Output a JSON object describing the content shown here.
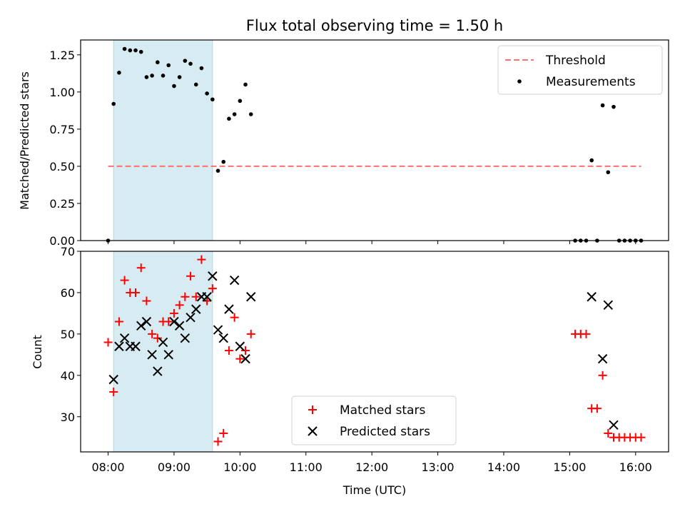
{
  "chart_data": [
    {
      "type": "scatter",
      "title": "Flux total observing time = 1.50 h",
      "xlabel": "",
      "ylabel": "Matched/Predicted stars",
      "ylim": [
        0,
        1.35
      ],
      "yticks": [
        "0.00",
        "0.25",
        "0.50",
        "0.75",
        "1.00",
        "1.25"
      ],
      "shaded_interval": [
        "08:05",
        "09:35"
      ],
      "threshold": {
        "name": "Threshold",
        "value": 0.5,
        "x_range": [
          "08:00",
          "16:05"
        ],
        "color": "#ff7070"
      },
      "legend": {
        "position": "top-right",
        "entries": [
          "Threshold",
          "Measurements"
        ]
      },
      "series": [
        {
          "name": "Measurements",
          "color": "#000000",
          "points": [
            [
              "08:00",
              0.0
            ],
            [
              "08:05",
              0.92
            ],
            [
              "08:10",
              1.13
            ],
            [
              "08:15",
              1.29
            ],
            [
              "08:20",
              1.28
            ],
            [
              "08:25",
              1.28
            ],
            [
              "08:30",
              1.27
            ],
            [
              "08:35",
              1.1
            ],
            [
              "08:40",
              1.11
            ],
            [
              "08:45",
              1.2
            ],
            [
              "08:50",
              1.11
            ],
            [
              "08:55",
              1.18
            ],
            [
              "09:00",
              1.04
            ],
            [
              "09:05",
              1.1
            ],
            [
              "09:10",
              1.21
            ],
            [
              "09:15",
              1.19
            ],
            [
              "09:20",
              1.05
            ],
            [
              "09:25",
              1.16
            ],
            [
              "09:30",
              0.99
            ],
            [
              "09:35",
              0.95
            ],
            [
              "09:40",
              0.47
            ],
            [
              "09:45",
              0.53
            ],
            [
              "09:50",
              0.82
            ],
            [
              "09:55",
              0.85
            ],
            [
              "10:00",
              0.94
            ],
            [
              "10:05",
              1.05
            ],
            [
              "10:10",
              0.85
            ],
            [
              "15:05",
              0.0
            ],
            [
              "15:10",
              0.0
            ],
            [
              "15:15",
              0.0
            ],
            [
              "15:20",
              0.54
            ],
            [
              "15:25",
              0.0
            ],
            [
              "15:30",
              0.91
            ],
            [
              "15:35",
              0.46
            ],
            [
              "15:40",
              0.9
            ],
            [
              "15:45",
              0.0
            ],
            [
              "15:50",
              0.0
            ],
            [
              "15:55",
              0.0
            ],
            [
              "16:00",
              0.0
            ],
            [
              "16:05",
              0.0
            ]
          ]
        }
      ]
    },
    {
      "type": "scatter",
      "title": "",
      "xlabel": "Time (UTC)",
      "ylabel": "Count",
      "ylim": [
        21.5,
        70
      ],
      "yticks": [
        "30",
        "40",
        "50",
        "60",
        "70"
      ],
      "xlim": [
        "07:35",
        "16:30"
      ],
      "xticks": [
        "08:00",
        "09:00",
        "10:00",
        "11:00",
        "12:00",
        "13:00",
        "14:00",
        "15:00",
        "16:00"
      ],
      "shaded_interval": [
        "08:05",
        "09:35"
      ],
      "legend": {
        "position": "bottom-center",
        "entries": [
          "Matched stars",
          "Predicted stars"
        ]
      },
      "series": [
        {
          "name": "Matched stars",
          "marker": "plus",
          "color": "#ff0000",
          "points": [
            [
              "08:00",
              48
            ],
            [
              "08:05",
              36
            ],
            [
              "08:10",
              53
            ],
            [
              "08:15",
              63
            ],
            [
              "08:20",
              60
            ],
            [
              "08:25",
              60
            ],
            [
              "08:30",
              66
            ],
            [
              "08:35",
              58
            ],
            [
              "08:40",
              50
            ],
            [
              "08:45",
              49
            ],
            [
              "08:50",
              53
            ],
            [
              "08:55",
              53
            ],
            [
              "09:00",
              55
            ],
            [
              "09:05",
              57
            ],
            [
              "09:10",
              59
            ],
            [
              "09:15",
              64
            ],
            [
              "09:20",
              59
            ],
            [
              "09:25",
              68
            ],
            [
              "09:30",
              58
            ],
            [
              "09:35",
              61
            ],
            [
              "09:40",
              24
            ],
            [
              "09:45",
              26
            ],
            [
              "09:50",
              46
            ],
            [
              "09:55",
              54
            ],
            [
              "10:00",
              44
            ],
            [
              "10:05",
              46
            ],
            [
              "10:10",
              50
            ],
            [
              "15:05",
              50
            ],
            [
              "15:10",
              50
            ],
            [
              "15:15",
              50
            ],
            [
              "15:20",
              32
            ],
            [
              "15:25",
              32
            ],
            [
              "15:30",
              40
            ],
            [
              "15:35",
              26
            ],
            [
              "15:40",
              25
            ],
            [
              "15:45",
              25
            ],
            [
              "15:50",
              25
            ],
            [
              "15:55",
              25
            ],
            [
              "16:00",
              25
            ],
            [
              "16:05",
              25
            ]
          ]
        },
        {
          "name": "Predicted stars",
          "marker": "x",
          "color": "#000000",
          "points": [
            [
              "08:05",
              39
            ],
            [
              "08:10",
              47
            ],
            [
              "08:15",
              49
            ],
            [
              "08:20",
              47
            ],
            [
              "08:25",
              47
            ],
            [
              "08:30",
              52
            ],
            [
              "08:35",
              53
            ],
            [
              "08:40",
              45
            ],
            [
              "08:45",
              41
            ],
            [
              "08:50",
              48
            ],
            [
              "08:55",
              45
            ],
            [
              "09:00",
              53
            ],
            [
              "09:05",
              52
            ],
            [
              "09:10",
              49
            ],
            [
              "09:15",
              54
            ],
            [
              "09:20",
              56
            ],
            [
              "09:25",
              59
            ],
            [
              "09:30",
              59
            ],
            [
              "09:35",
              64
            ],
            [
              "09:40",
              51
            ],
            [
              "09:45",
              49
            ],
            [
              "09:50",
              56
            ],
            [
              "09:55",
              63
            ],
            [
              "10:00",
              47
            ],
            [
              "10:05",
              44
            ],
            [
              "10:10",
              59
            ],
            [
              "15:20",
              59
            ],
            [
              "15:30",
              44
            ],
            [
              "15:35",
              57
            ],
            [
              "15:40",
              28
            ]
          ]
        }
      ]
    }
  ]
}
